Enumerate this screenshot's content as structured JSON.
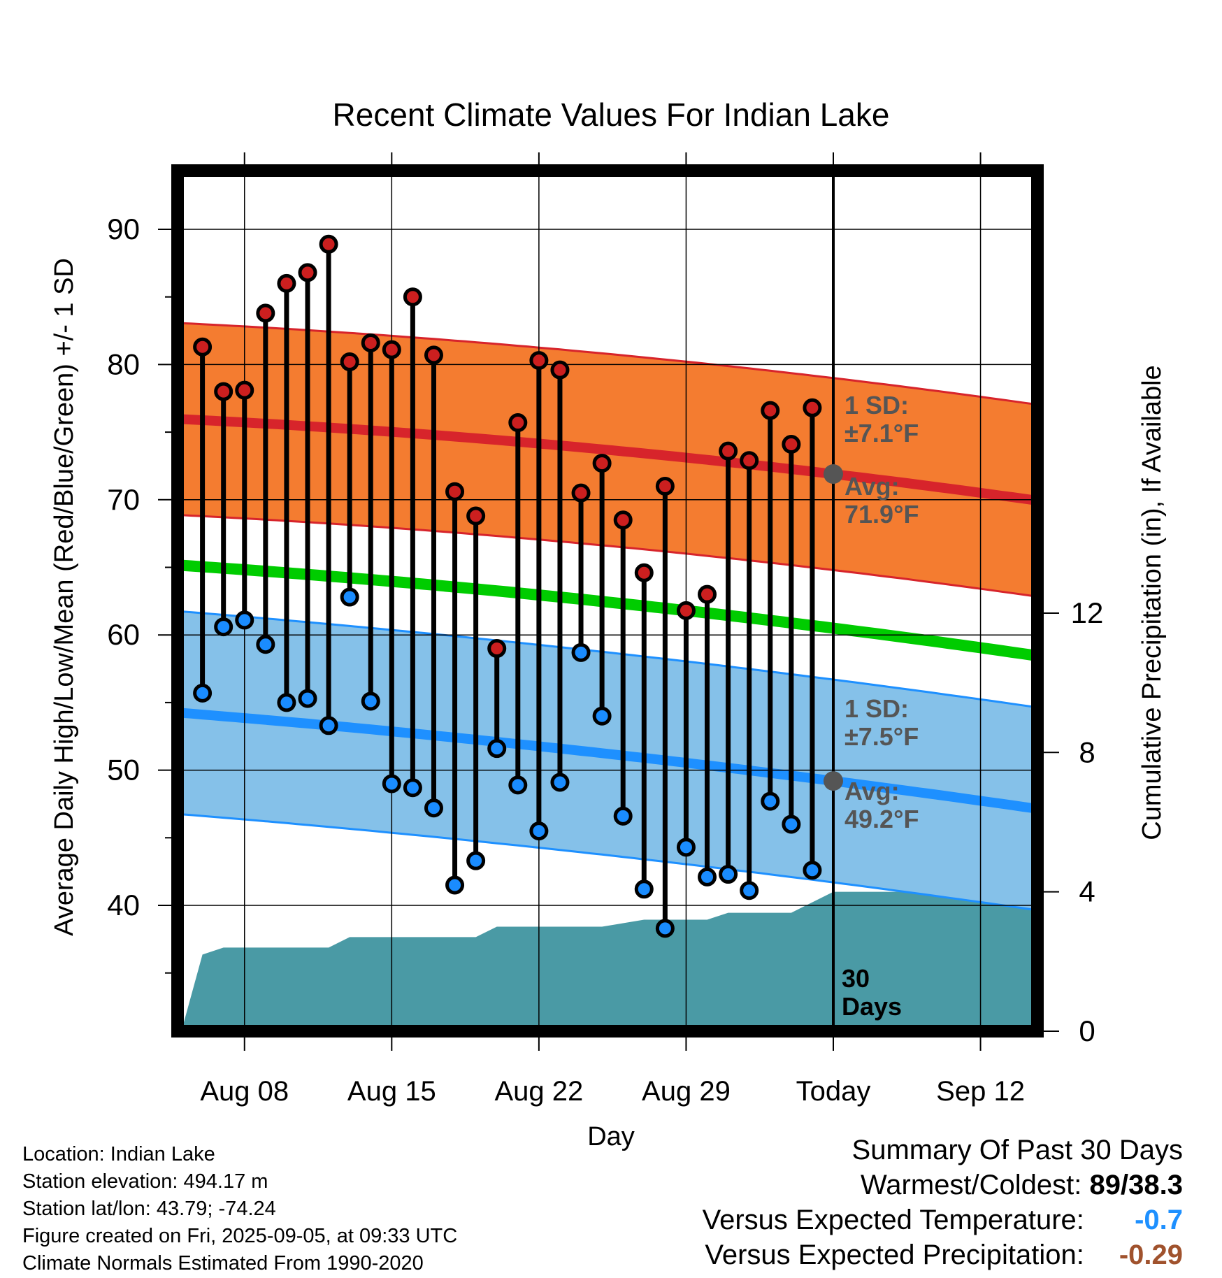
{
  "chart_data": {
    "type": "line",
    "title": "Recent Climate Values For Indian Lake",
    "xlabel": "Day",
    "ylabel": "Average Daily High/Low/Mean (Red/Blue/Green) +/- 1 SD",
    "ylabel2": "Cumulative Precipitation (in), If Available",
    "x_ticks": [
      "Aug 08",
      "Aug 15",
      "Aug 22",
      "Aug 29",
      "Today",
      "Sep 12"
    ],
    "y_ticks": [
      "40",
      "50",
      "60",
      "70",
      "80",
      "90"
    ],
    "y2_ticks": [
      "0",
      "4",
      "8",
      "12"
    ],
    "ylim": [
      30.5,
      94.5
    ],
    "y2lim": [
      0,
      24.7
    ],
    "day_offsets": [
      -30,
      -29,
      -28,
      -27,
      -26,
      -25,
      -24,
      -23,
      -22,
      -21,
      -20,
      -19,
      -18,
      -17,
      -16,
      -15,
      -14,
      -13,
      -12,
      -11,
      -10,
      -9,
      -8,
      -7,
      -6,
      -5,
      -4,
      -3,
      -2,
      -1
    ],
    "observed_high": [
      81.3,
      78.0,
      78.1,
      83.8,
      86.0,
      86.8,
      88.9,
      80.2,
      81.6,
      81.1,
      85.0,
      80.7,
      70.6,
      68.8,
      59.0,
      75.7,
      80.3,
      79.6,
      70.5,
      72.7,
      68.5,
      64.6,
      71.0,
      61.8,
      63.0,
      73.6,
      72.9,
      76.6,
      74.1,
      76.8
    ],
    "observed_low": [
      55.7,
      60.6,
      61.1,
      59.3,
      55.0,
      55.3,
      53.3,
      62.8,
      55.1,
      49.0,
      48.7,
      47.2,
      41.5,
      43.3,
      51.6,
      48.9,
      45.5,
      49.1,
      58.7,
      54.0,
      46.6,
      41.2,
      38.3,
      44.3,
      42.1,
      42.3,
      41.1,
      47.7,
      46.0,
      42.6
    ],
    "normal_high": {
      "start": 76.0,
      "today": 71.9,
      "end": 68.6
    },
    "normal_low": {
      "start": 54.3,
      "today": 49.2,
      "end": 45.8
    },
    "normal_mean": {
      "start": 65.2,
      "today": 60.5,
      "end": 57.1
    },
    "sd_high": 7.1,
    "sd_low": 7.5,
    "days_after_today": 15,
    "cumulative_precip_x": [
      -31,
      -30,
      -29,
      -24,
      -23,
      -17,
      -16,
      -14,
      -11,
      -10,
      -9,
      -6,
      -5,
      -3,
      -2,
      -1,
      0,
      15
    ],
    "cumulative_precip": [
      0.0,
      2.2,
      2.4,
      2.4,
      2.7,
      2.7,
      3.0,
      3.0,
      3.0,
      3.1,
      3.2,
      3.2,
      3.4,
      3.4,
      3.4,
      3.7,
      4.0,
      4.0
    ],
    "annotations": {
      "high_sd_line1": "1 SD:",
      "high_sd_line2": "±7.1°F",
      "high_avg_line1": "Avg:",
      "high_avg_line2": "71.9°F",
      "low_sd_line1": "1 SD:",
      "low_sd_line2": "±7.5°F",
      "low_avg_line1": "Avg:",
      "low_avg_line2": "49.2°F",
      "window_line1": "30",
      "window_line2": "Days"
    },
    "colors": {
      "high_band": "#f47c30",
      "high_line": "#d7242b",
      "low_band": "#85c1e9",
      "low_line": "#1e90ff",
      "mean_line": "#00cc00",
      "precip": "#4a9aa5",
      "high_dot": "#cc1f1f",
      "low_dot": "#1a8cff",
      "annotation": "#555555"
    }
  },
  "footer": {
    "location": "Location: Indian Lake",
    "elevation": "Station elevation: 494.17 m",
    "latlon": "Station lat/lon: 43.79; -74.24",
    "created": "Figure created on Fri, 2025-09-05, at 09:33 UTC",
    "normals": "Climate Normals Estimated From 1990-2020"
  },
  "summary": {
    "title": "Summary Of Past 30 Days",
    "warmest_label": "Warmest/Coldest:",
    "warmest_value": "89/38.3",
    "temp_label": "Versus Expected Temperature:",
    "temp_value": "-0.7",
    "temp_color": "#1e90ff",
    "precip_label": "Versus Expected Precipitation:",
    "precip_value": "-0.29",
    "precip_color": "#a0522d"
  }
}
